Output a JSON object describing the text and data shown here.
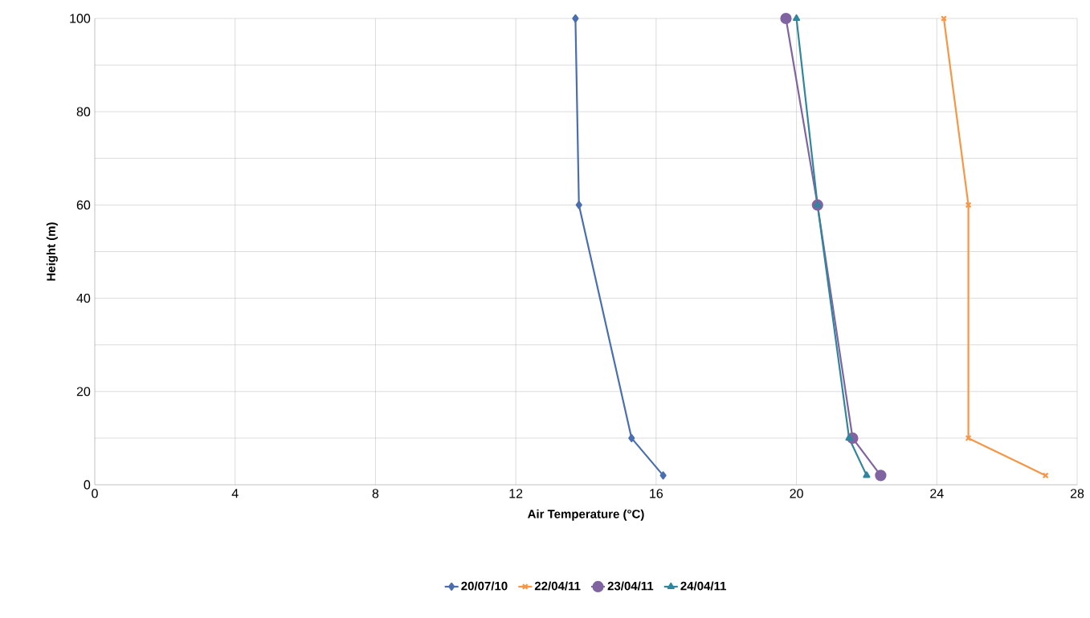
{
  "chart_data": {
    "type": "line",
    "xlabel": "Air Temperature (°C)",
    "ylabel": "Height (m)",
    "xlim": [
      0,
      28
    ],
    "xticks": [
      0,
      4,
      8,
      12,
      16,
      20,
      24,
      28
    ],
    "ylim": [
      0,
      100
    ],
    "yticks": [
      0,
      {
        "value": 10,
        "label": null
      },
      20,
      {
        "value": 30,
        "label": null
      },
      40,
      {
        "value": 50,
        "label": null
      },
      60,
      {
        "value": 70,
        "label": null
      },
      80,
      {
        "value": 90,
        "label": null
      },
      100
    ],
    "grid": true,
    "legend": "bottom",
    "series": [
      {
        "name": "20/07/10",
        "color": "#4a6eb0",
        "marker": "diamond",
        "x": [
          13.7,
          13.8,
          15.3,
          16.2
        ],
        "values": [
          100,
          60,
          10,
          2
        ]
      },
      {
        "name": "22/04/11",
        "color": "#f79646",
        "marker": "cross",
        "x": [
          24.2,
          24.9,
          24.9,
          27.1
        ],
        "values": [
          100,
          60,
          10,
          2
        ]
      },
      {
        "name": "23/04/11",
        "color": "#8064a2",
        "marker": "circle",
        "x": [
          19.7,
          20.6,
          21.6,
          22.4
        ],
        "values": [
          100,
          60,
          10,
          2
        ]
      },
      {
        "name": "24/04/11",
        "color": "#31859c",
        "marker": "triangle",
        "x": [
          20.0,
          20.6,
          21.5,
          22.0
        ],
        "values": [
          100,
          60,
          10,
          2
        ]
      }
    ]
  }
}
